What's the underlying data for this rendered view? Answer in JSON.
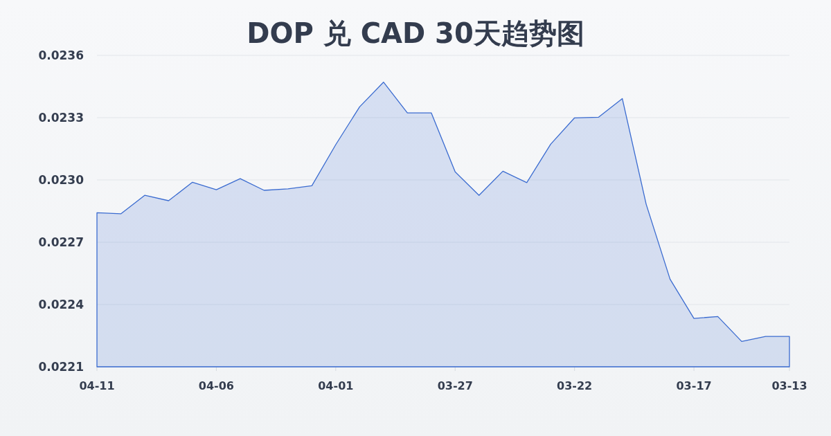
{
  "chart_data": {
    "type": "area",
    "title": "DOP 兑 CAD 30天趋势图",
    "categories": [
      "04-11",
      null,
      null,
      null,
      null,
      "04-06",
      null,
      null,
      null,
      null,
      "04-01",
      null,
      null,
      null,
      null,
      "03-27",
      null,
      null,
      null,
      null,
      "03-22",
      null,
      null,
      null,
      null,
      "03-17",
      null,
      null,
      null,
      "03-13"
    ],
    "values": [
      0.022842,
      0.022837,
      0.022926,
      0.0229,
      0.022989,
      0.022953,
      0.023006,
      0.02295,
      0.022957,
      0.022972,
      0.02317,
      0.023352,
      0.023471,
      0.023323,
      0.023323,
      0.023039,
      0.022926,
      0.023042,
      0.022987,
      0.023172,
      0.023299,
      0.023302,
      0.023392,
      0.022883,
      0.022522,
      0.022333,
      0.022342,
      0.022222,
      0.022246,
      0.022246
    ],
    "color": "#3a6bd0",
    "ylim": [
      0.0221,
      0.0236
    ],
    "yticks": [
      0.0221,
      0.0224,
      0.0227,
      {
        "value": 0.023,
        "label": "0.0230"
      },
      0.0233,
      0.0236
    ],
    "grid": "y"
  }
}
